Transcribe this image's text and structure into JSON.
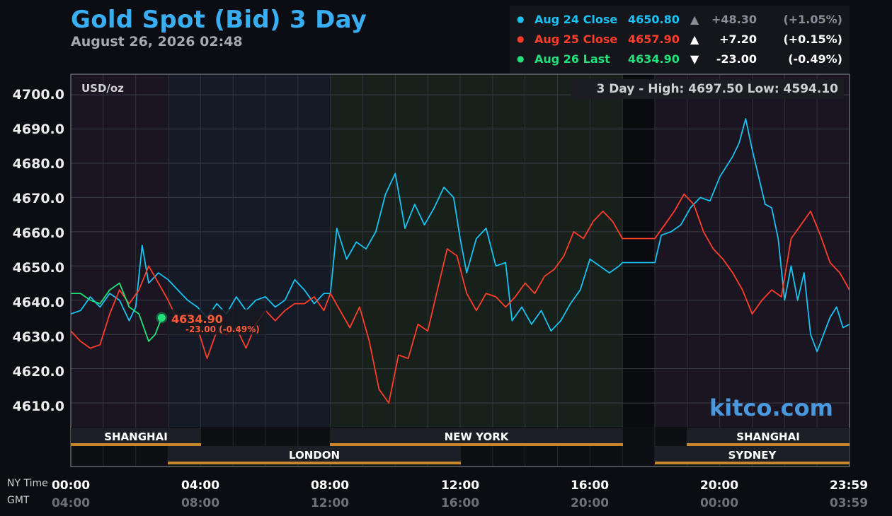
{
  "title": "Gold Spot (Bid) 3 Day",
  "subtitle": "August 26, 2026 02:48",
  "unit_label": "USD/oz",
  "high_low": "3 Day - High: 4697.50  Low: 4594.10",
  "brand": "kitco.com",
  "legend": [
    {
      "name": "Aug 24 Close",
      "value": "4650.80",
      "arrow": "▲",
      "change": "+48.30",
      "pct": "(+1.05%)",
      "color": "#19c2f2",
      "dim": true
    },
    {
      "name": "Aug 25 Close",
      "value": "4657.90",
      "arrow": "▲",
      "change": "+7.20",
      "pct": "(+0.15%)",
      "color": "#ff3d2b",
      "dim": true
    },
    {
      "name": "Aug 26 Last",
      "value": "4634.90",
      "arrow": "▼",
      "change": "-23.00",
      "pct": "(-0.49%)",
      "color": "#22e07a",
      "dim": false
    }
  ],
  "marker": {
    "value": "4634.90",
    "change": "-23.00 (-0.49%)"
  },
  "axis": {
    "y_ticks": [
      "4700.0",
      "4690.0",
      "4680.0",
      "4670.0",
      "4660.0",
      "4650.0",
      "4640.0",
      "4630.0",
      "4620.0",
      "4610.0"
    ],
    "x_ny": [
      "00:00",
      "04:00",
      "08:00",
      "12:00",
      "16:00",
      "20:00",
      "23:59"
    ],
    "x_gmt": [
      "04:00",
      "08:00",
      "12:00",
      "16:00",
      "20:00",
      "00:00",
      "03:59"
    ],
    "ny_label": "NY Time",
    "gmt_label": "GMT"
  },
  "sessions": {
    "shanghai_1": "SHANGHAI",
    "london": "LONDON",
    "new_york": "NEW YORK",
    "shanghai_2": "SHANGHAI",
    "sydney": "SYDNEY"
  },
  "colors": {
    "aug24": "#19c2f2",
    "aug25": "#ff3d2b",
    "aug26": "#22e07a",
    "session_bar": "#c8872a"
  },
  "chart_data": {
    "type": "line",
    "title": "Gold Spot (Bid) 3 Day",
    "ylabel": "USD/oz",
    "x_unit": "NY time (hours)",
    "xlim": [
      0,
      24
    ],
    "ylim": [
      4603,
      4706
    ],
    "grid": true,
    "legend_position": "top-right",
    "series": [
      {
        "name": "Aug 24 Close",
        "color": "#19c2f2",
        "x": [
          0,
          0.3,
          0.6,
          0.9,
          1.2,
          1.5,
          1.8,
          2.0,
          2.2,
          2.4,
          2.7,
          3.0,
          3.3,
          3.6,
          3.9,
          4.2,
          4.5,
          4.8,
          5.1,
          5.4,
          5.7,
          6.0,
          6.3,
          6.6,
          6.9,
          7.2,
          7.5,
          7.8,
          8.0,
          8.2,
          8.5,
          8.8,
          9.1,
          9.4,
          9.7,
          10.0,
          10.3,
          10.6,
          10.9,
          11.2,
          11.5,
          11.8,
          12.0,
          12.2,
          12.5,
          12.8,
          13.1,
          13.4,
          13.6,
          13.9,
          14.2,
          14.5,
          14.8,
          15.1,
          15.4,
          15.7,
          16.0,
          16.3,
          16.6,
          16.9,
          17.0,
          18.0,
          18.2,
          18.5,
          18.8,
          19.1,
          19.4,
          19.7,
          20.0,
          20.2,
          20.4,
          20.6,
          20.8,
          21.0,
          21.2,
          21.4,
          21.6,
          21.8,
          22.0,
          22.2,
          22.4,
          22.6,
          22.8,
          23.0,
          23.2,
          23.4,
          23.6,
          23.8,
          24.0
        ],
        "y": [
          4636,
          4637,
          4641,
          4638,
          4642,
          4640,
          4634,
          4638,
          4656,
          4645,
          4648,
          4646,
          4643,
          4640,
          4638,
          4635,
          4639,
          4636,
          4641,
          4637,
          4640,
          4641,
          4638,
          4640,
          4646,
          4643,
          4639,
          4642,
          4642,
          4661,
          4652,
          4657,
          4655,
          4660,
          4671,
          4677,
          4661,
          4668,
          4662,
          4667,
          4673,
          4670,
          4658,
          4648,
          4658,
          4661,
          4650,
          4651,
          4634,
          4638,
          4633,
          4637,
          4631,
          4634,
          4639,
          4643,
          4652,
          4650,
          4648,
          4650,
          4651,
          4651,
          4659,
          4660,
          4662,
          4667,
          4670,
          4669,
          4676,
          4679,
          4682,
          4686,
          4693,
          4684,
          4676,
          4668,
          4667,
          4658,
          4640,
          4650,
          4640,
          4648,
          4630,
          4625,
          4630,
          4635,
          4638,
          4632,
          4633
        ]
      },
      {
        "name": "Aug 25 Close",
        "color": "#ff3d2b",
        "x": [
          0,
          0.3,
          0.6,
          0.9,
          1.2,
          1.5,
          1.8,
          2.1,
          2.4,
          2.7,
          3.0,
          3.3,
          3.6,
          3.9,
          4.2,
          4.5,
          4.8,
          5.1,
          5.4,
          5.7,
          6.0,
          6.3,
          6.6,
          6.9,
          7.2,
          7.5,
          7.8,
          8.0,
          8.3,
          8.6,
          8.9,
          9.2,
          9.5,
          9.8,
          10.1,
          10.4,
          10.7,
          11.0,
          11.3,
          11.6,
          11.9,
          12.2,
          12.5,
          12.8,
          13.1,
          13.4,
          13.7,
          14.0,
          14.3,
          14.6,
          14.9,
          15.2,
          15.5,
          15.8,
          16.1,
          16.4,
          16.7,
          17.0,
          18.0,
          18.3,
          18.6,
          18.9,
          19.2,
          19.5,
          19.8,
          20.1,
          20.4,
          20.7,
          21.0,
          21.3,
          21.6,
          21.9,
          22.2,
          22.5,
          22.8,
          23.1,
          23.4,
          23.7,
          24.0
        ],
        "y": [
          4631,
          4628,
          4626,
          4627,
          4636,
          4643,
          4639,
          4643,
          4650,
          4645,
          4640,
          4634,
          4636,
          4632,
          4623,
          4631,
          4630,
          4632,
          4626,
          4633,
          4637,
          4634,
          4637,
          4639,
          4639,
          4641,
          4637,
          4642,
          4637,
          4632,
          4638,
          4628,
          4614,
          4610,
          4624,
          4623,
          4633,
          4631,
          4643,
          4655,
          4653,
          4642,
          4637,
          4642,
          4641,
          4638,
          4641,
          4645,
          4642,
          4647,
          4649,
          4653,
          4660,
          4658,
          4663,
          4666,
          4663,
          4658,
          4658,
          4662,
          4666,
          4671,
          4668,
          4660,
          4655,
          4652,
          4648,
          4643,
          4636,
          4640,
          4643,
          4641,
          4658,
          4662,
          4666,
          4659,
          4651,
          4648,
          4643
        ]
      },
      {
        "name": "Aug 26 Last",
        "color": "#22e07a",
        "x": [
          0,
          0.3,
          0.6,
          0.9,
          1.2,
          1.5,
          1.8,
          2.1,
          2.4,
          2.6,
          2.8
        ],
        "y": [
          4642,
          4642,
          4640,
          4639,
          4643,
          4645,
          4638,
          4636,
          4628,
          4630,
          4634.9
        ]
      }
    ]
  }
}
